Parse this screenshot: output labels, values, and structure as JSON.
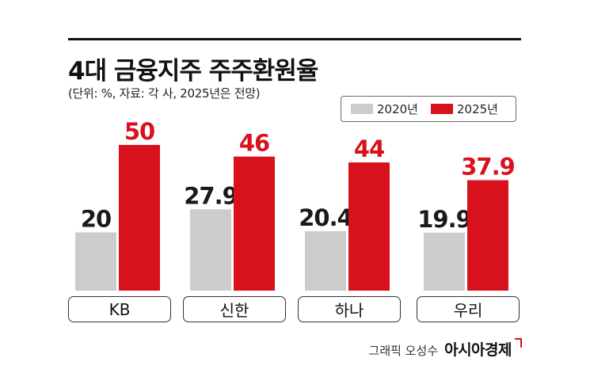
{
  "header": {
    "title": "4대 금융지주 주주환원율",
    "subtitle": "(단위: %, 자료: 각 사, 2025년은 전망)"
  },
  "colors": {
    "series_2020": "#cccccc",
    "series_2025": "#d7121d",
    "value_2020": "#1a1a1a",
    "value_2025": "#d7121d"
  },
  "chart_data": {
    "type": "bar",
    "title": "4대 금융지주 주주환원율",
    "subtitle": "(단위: %, 자료: 각 사, 2025년은 전망)",
    "categories": [
      "KB",
      "신한",
      "하나",
      "우리"
    ],
    "series": [
      {
        "name": "2020년",
        "values": [
          20,
          27.9,
          20.4,
          19.9
        ],
        "labels": [
          "20",
          "27.9",
          "20.4",
          "19.9"
        ]
      },
      {
        "name": "2025년",
        "values": [
          50,
          46,
          44,
          37.9
        ],
        "labels": [
          "50",
          "46",
          "44",
          "37.9"
        ]
      }
    ],
    "ylim": [
      0,
      50
    ],
    "grid": false,
    "legend": "top-right"
  },
  "footer": {
    "credit": "그래픽 오성수",
    "brand": "아시아경제"
  }
}
